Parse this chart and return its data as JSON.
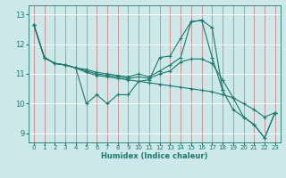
{
  "xlabel": "Humidex (Indice chaleur)",
  "bg_color": "#cce8e8",
  "line_color": "#1a7a6e",
  "grid_color_x": "#d08080",
  "grid_color_y": "#ffffff",
  "xlim": [
    -0.5,
    23.5
  ],
  "ylim": [
    8.7,
    13.3
  ],
  "xticks": [
    0,
    1,
    2,
    3,
    4,
    5,
    6,
    7,
    8,
    9,
    10,
    11,
    12,
    13,
    14,
    15,
    16,
    17,
    18,
    19,
    20,
    21,
    22,
    23
  ],
  "yticks": [
    9,
    10,
    11,
    12,
    13
  ],
  "lines": [
    {
      "x": [
        0,
        1,
        2,
        3,
        4,
        5,
        6,
        7,
        8,
        9,
        10,
        11,
        12,
        13,
        14,
        15,
        16,
        17,
        18
      ],
      "y": [
        12.65,
        11.55,
        11.35,
        11.3,
        11.2,
        10.0,
        10.3,
        10.0,
        10.3,
        10.3,
        10.75,
        10.8,
        11.55,
        11.6,
        12.2,
        12.75,
        12.8,
        12.55,
        10.45
      ]
    },
    {
      "x": [
        0,
        1,
        2,
        3,
        4,
        5,
        6,
        7,
        8,
        9,
        10,
        11,
        12,
        13,
        14,
        15,
        16,
        17,
        18,
        19,
        20,
        21,
        22,
        23
      ],
      "y": [
        12.65,
        11.55,
        11.35,
        11.3,
        11.2,
        11.05,
        10.95,
        10.9,
        10.85,
        10.8,
        10.75,
        10.7,
        10.65,
        10.6,
        10.55,
        10.5,
        10.45,
        10.4,
        10.3,
        10.2,
        10.0,
        9.8,
        9.55,
        9.7
      ]
    },
    {
      "x": [
        0,
        1,
        2,
        3,
        4,
        5,
        6,
        7,
        8,
        9,
        10,
        11,
        12,
        13,
        14,
        15,
        16,
        17,
        18,
        19,
        20,
        21,
        22,
        23
      ],
      "y": [
        12.65,
        11.55,
        11.35,
        11.3,
        11.2,
        11.1,
        11.0,
        10.95,
        10.9,
        10.85,
        10.9,
        10.85,
        11.0,
        11.1,
        11.4,
        11.5,
        11.5,
        11.35,
        10.8,
        10.2,
        9.55,
        9.3,
        8.85,
        9.7
      ]
    },
    {
      "x": [
        0,
        1,
        2,
        3,
        4,
        5,
        6,
        7,
        8,
        9,
        10,
        11,
        12,
        13,
        14,
        15,
        16,
        17,
        18,
        19,
        20,
        21,
        22,
        23
      ],
      "y": [
        12.65,
        11.55,
        11.35,
        11.3,
        11.2,
        11.15,
        11.05,
        11.0,
        10.95,
        10.9,
        11.0,
        10.9,
        11.1,
        11.3,
        11.55,
        12.75,
        12.8,
        11.55,
        10.45,
        9.8,
        9.55,
        9.3,
        8.85,
        9.7
      ]
    }
  ]
}
